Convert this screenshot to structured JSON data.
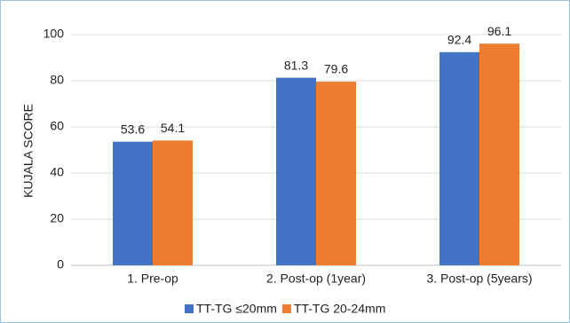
{
  "chart_data": {
    "type": "bar",
    "y_label": "KUJALA SCORE",
    "categories": [
      "1. Pre-op",
      "2. Post-op (1year)",
      "3. Post-op (5years)"
    ],
    "series": [
      {
        "name": "TT-TG ≤20mm",
        "color": "#4472c4",
        "values": [
          53.6,
          81.3,
          92.4
        ]
      },
      {
        "name": "TT-TG 20-24mm",
        "color": "#ed7d31",
        "values": [
          54.1,
          79.6,
          96.1
        ]
      }
    ],
    "ylim": [
      0,
      100
    ],
    "yticks": [
      0,
      20,
      40,
      60,
      80,
      100
    ],
    "grid": true
  }
}
